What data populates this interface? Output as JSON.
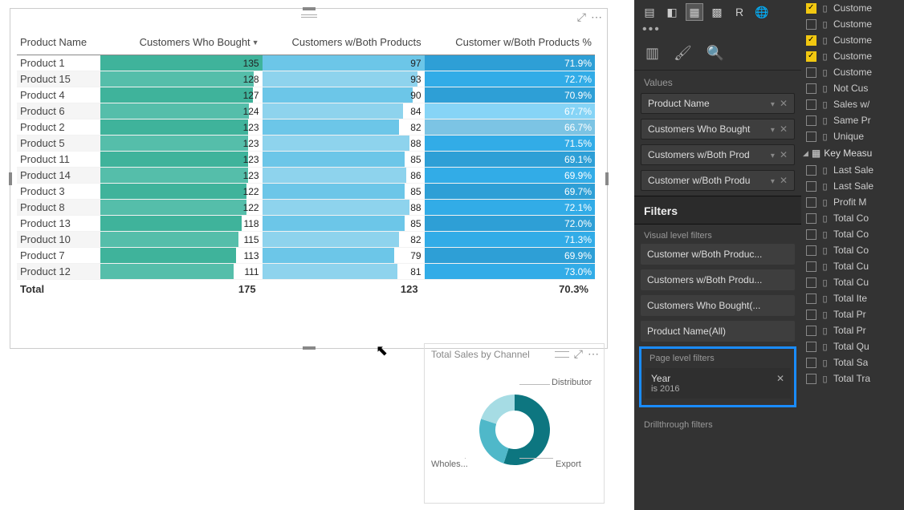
{
  "table": {
    "columns": [
      "Product Name",
      "Customers Who Bought",
      "Customers w/Both Products",
      "Customer w/Both Products %"
    ],
    "sort_column_index": 1,
    "rows": [
      {
        "name": "Product 1",
        "bought": 135,
        "both": 97,
        "pct": 71.9
      },
      {
        "name": "Product 15",
        "bought": 128,
        "both": 93,
        "pct": 72.7
      },
      {
        "name": "Product 4",
        "bought": 127,
        "both": 90,
        "pct": 70.9
      },
      {
        "name": "Product 6",
        "bought": 124,
        "both": 84,
        "pct": 67.7
      },
      {
        "name": "Product 2",
        "bought": 123,
        "both": 82,
        "pct": 66.7
      },
      {
        "name": "Product 5",
        "bought": 123,
        "both": 88,
        "pct": 71.5
      },
      {
        "name": "Product 11",
        "bought": 123,
        "both": 85,
        "pct": 69.1
      },
      {
        "name": "Product 14",
        "bought": 123,
        "both": 86,
        "pct": 69.9
      },
      {
        "name": "Product 3",
        "bought": 122,
        "both": 85,
        "pct": 69.7
      },
      {
        "name": "Product 8",
        "bought": 122,
        "both": 88,
        "pct": 72.1
      },
      {
        "name": "Product 13",
        "bought": 118,
        "both": 85,
        "pct": 72.0
      },
      {
        "name": "Product 10",
        "bought": 115,
        "both": 82,
        "pct": 71.3
      },
      {
        "name": "Product 7",
        "bought": 113,
        "both": 79,
        "pct": 69.9
      },
      {
        "name": "Product 12",
        "bought": 111,
        "both": 81,
        "pct": 73.0
      }
    ],
    "totals": {
      "label": "Total",
      "bought": 175,
      "both": 123,
      "pct": 70.3
    },
    "style": {
      "bought_max": 135,
      "both_max": 97,
      "pct_max": 100,
      "bought_color": "#3fb39b",
      "bought_color_alt": "#55beaa",
      "both_color": "#6cc6e8",
      "both_color_alt": "#8ed3ed",
      "pct_color": "#2e9fd6",
      "pct_color_light": "#7cc4e4",
      "row_alt_bg": "#f5f5f5"
    }
  },
  "donut": {
    "title": "Total Sales by Channel",
    "segments": [
      {
        "label": "Distributor",
        "value": 55,
        "color": "#0d7680"
      },
      {
        "label": "Export",
        "value": 25,
        "color": "#4fb8c9"
      },
      {
        "label": "Wholes...",
        "value": 20,
        "color": "#a6dce4"
      }
    ]
  },
  "format": {
    "tabs": [
      "fields",
      "format",
      "analytics"
    ],
    "values_label": "Values",
    "wells": [
      "Product Name",
      "Customers Who Bought",
      "Customers w/Both Prod",
      "Customer w/Both Produ"
    ],
    "filters_header": "Filters",
    "visual_filters_label": "Visual level filters",
    "visual_filters": [
      "Customer w/Both Produc...",
      "Customers w/Both Produ...",
      "Customers Who Bought(...",
      "Product Name(All)"
    ],
    "page_filters_label": "Page level filters",
    "page_filter": {
      "field": "Year",
      "desc": "is 2016"
    },
    "drill_label": "Drillthrough filters"
  },
  "fields": {
    "items": [
      {
        "checked": true,
        "icon": "col",
        "label": "Custome"
      },
      {
        "checked": false,
        "icon": "col",
        "label": "Custome"
      },
      {
        "checked": true,
        "icon": "col",
        "label": "Custome"
      },
      {
        "checked": true,
        "icon": "col",
        "label": "Custome"
      },
      {
        "checked": false,
        "icon": "col",
        "label": "Custome"
      },
      {
        "checked": false,
        "icon": "col",
        "label": "Not Cus"
      },
      {
        "checked": false,
        "icon": "col",
        "label": "Sales w/"
      },
      {
        "checked": false,
        "icon": "col",
        "label": "Same Pr"
      },
      {
        "checked": false,
        "icon": "col",
        "label": "Unique"
      }
    ],
    "group": {
      "label": "Key Measu"
    },
    "measures": [
      "Last Sale",
      "Last Sale",
      "Profit M",
      "Total Co",
      "Total Co",
      "Total Co",
      "Total Cu",
      "Total Cu",
      "Total Ite",
      "Total Pr",
      "Total Pr",
      "Total Qu",
      "Total Sa",
      "Total Tra"
    ]
  }
}
